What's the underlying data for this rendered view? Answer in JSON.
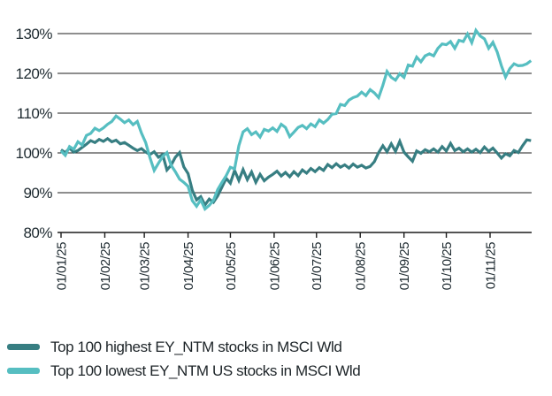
{
  "chart_data": {
    "type": "line",
    "title": "",
    "xlabel": "",
    "ylabel": "",
    "grid": "horizontal-only",
    "legend_position": "bottom-left",
    "y_axis": {
      "min": 80,
      "max": 130,
      "tick_step": 10,
      "tick_labels": [
        "80%",
        "90%",
        "100%",
        "110%",
        "120%",
        "130%"
      ]
    },
    "x_axis": {
      "tick_labels": [
        "01/01/25",
        "01/02/25",
        "01/03/25",
        "01/04/25",
        "01/05/25",
        "01/06/25",
        "01/07/25",
        "01/08/25",
        "01/09/25",
        "01/10/25",
        "01/11/25"
      ],
      "tick_day_offsets": [
        0,
        31,
        59,
        90,
        120,
        151,
        181,
        212,
        243,
        273,
        304
      ],
      "total_days": 333,
      "date_format": "DD/MM/YY"
    },
    "sample_day_step": 3,
    "series": [
      {
        "name": "Top 100 highest EY_NTM stocks in MSCI Wld",
        "color": "#377E82",
        "unit": "%",
        "values": [
          100.8,
          100.1,
          101.2,
          100.2,
          100.6,
          101.4,
          102.2,
          103.1,
          102.6,
          103.4,
          102.9,
          103.6,
          102.8,
          103.2,
          102.3,
          102.6,
          101.9,
          101.2,
          100.6,
          101.1,
          100.2,
          99.6,
          100.3,
          98.9,
          99.6,
          95.7,
          96.9,
          98.9,
          100.1,
          96.5,
          94.8,
          90.6,
          88.2,
          89.0,
          86.9,
          88.4,
          87.6,
          89.2,
          91.4,
          93.6,
          92.4,
          95.6,
          93.1,
          95.8,
          93.3,
          95.2,
          92.6,
          94.6,
          93.0,
          93.9,
          94.6,
          95.4,
          94.2,
          95.1,
          94.0,
          95.3,
          94.3,
          95.7,
          94.9,
          96.1,
          95.3,
          96.3,
          95.6,
          97.1,
          96.3,
          97.3,
          96.4,
          97.0,
          96.2,
          97.2,
          96.4,
          96.9,
          96.2,
          96.6,
          97.8,
          100.1,
          101.8,
          100.3,
          102.3,
          100.4,
          102.9,
          100.2,
          99.0,
          97.9,
          100.5,
          99.9,
          100.8,
          100.3,
          101.0,
          100.2,
          101.6,
          100.5,
          102.4,
          100.6,
          101.2,
          100.3,
          101.0,
          100.2,
          100.9,
          100.1,
          101.5,
          100.4,
          101.2,
          100.0,
          98.7,
          99.8,
          99.3,
          100.6,
          100.1,
          101.8,
          103.3,
          103.1
        ]
      },
      {
        "name": "Top 100 lowest EY_NTM US stocks in MSCI Wld",
        "color": "#56BEC1",
        "unit": "%",
        "values": [
          100.5,
          99.4,
          101.6,
          100.9,
          102.8,
          102.0,
          104.4,
          104.9,
          106.2,
          105.6,
          106.3,
          107.2,
          107.9,
          109.3,
          108.5,
          107.6,
          108.3,
          107.1,
          107.9,
          105.0,
          102.6,
          98.8,
          95.6,
          97.4,
          99.1,
          100.1,
          96.9,
          95.3,
          93.4,
          92.6,
          91.6,
          88.0,
          86.6,
          88.2,
          85.9,
          86.8,
          88.1,
          90.8,
          92.6,
          94.3,
          96.4,
          96.0,
          101.8,
          105.3,
          106.1,
          104.6,
          105.3,
          104.0,
          105.9,
          105.5,
          106.3,
          105.4,
          107.2,
          106.4,
          104.1,
          105.2,
          106.4,
          106.9,
          106.1,
          107.3,
          106.6,
          108.3,
          107.5,
          108.4,
          109.7,
          109.9,
          112.2,
          111.9,
          113.3,
          113.9,
          114.3,
          115.3,
          114.4,
          115.9,
          115.1,
          113.9,
          117.0,
          120.5,
          119.0,
          118.3,
          119.9,
          119.0,
          122.1,
          121.8,
          124.1,
          122.9,
          124.4,
          124.9,
          124.4,
          126.3,
          127.4,
          127.2,
          128.0,
          126.3,
          128.3,
          128.0,
          129.9,
          127.7,
          130.8,
          129.4,
          128.7,
          126.3,
          127.8,
          125.4,
          121.9,
          119.1,
          121.2,
          122.4,
          121.9,
          122.0,
          122.4,
          123.2
        ]
      }
    ],
    "colors": {
      "grid_line": "#1c1c1c",
      "axis_line": "#1c1c1c",
      "tick_text": "#1e2a30",
      "legend_text": "#1c2327",
      "background": "#ffffff"
    }
  }
}
